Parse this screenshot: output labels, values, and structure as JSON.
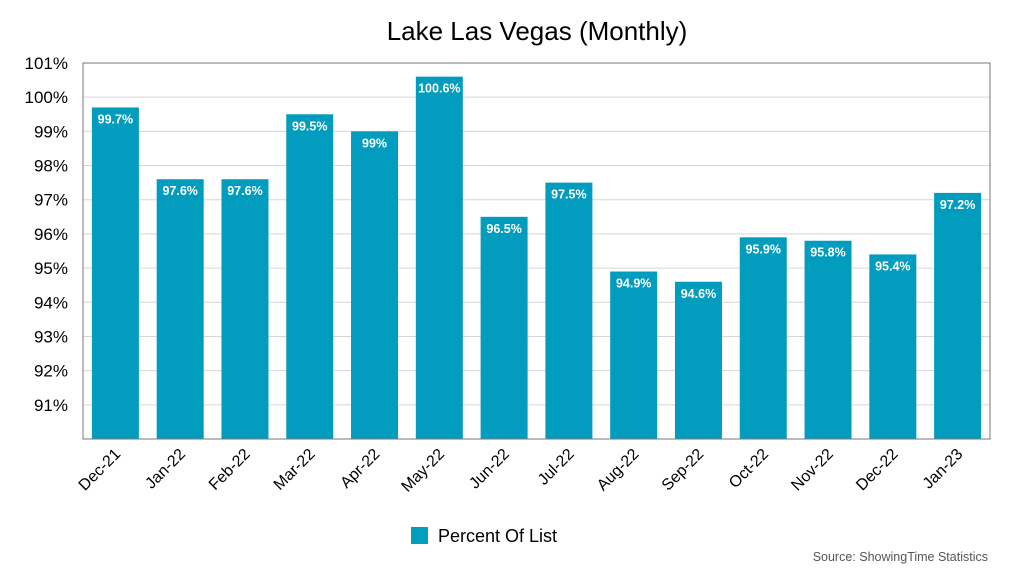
{
  "chart_data": {
    "type": "bar",
    "title": "Lake Las Vegas (Monthly)",
    "xlabel": "",
    "ylabel": "",
    "ylim": [
      90,
      101
    ],
    "yticks": [
      91,
      92,
      93,
      94,
      95,
      96,
      97,
      98,
      99,
      100,
      101
    ],
    "ytick_labels": [
      "91%",
      "92%",
      "93%",
      "94%",
      "95%",
      "96%",
      "97%",
      "98%",
      "99%",
      "100%",
      "101%"
    ],
    "grid": true,
    "categories": [
      "Dec-21",
      "Jan-22",
      "Feb-22",
      "Mar-22",
      "Apr-22",
      "May-22",
      "Jun-22",
      "Jul-22",
      "Aug-22",
      "Sep-22",
      "Oct-22",
      "Nov-22",
      "Dec-22",
      "Jan-23"
    ],
    "series": [
      {
        "name": "Percent Of List",
        "color": "#029dbe",
        "values": [
          99.7,
          97.6,
          97.6,
          99.5,
          99,
          100.6,
          96.5,
          97.5,
          94.9,
          94.6,
          95.9,
          95.8,
          95.4,
          97.2
        ],
        "labels": [
          "99.7%",
          "97.6%",
          "97.6%",
          "99.5%",
          "99%",
          "100.6%",
          "96.5%",
          "97.5%",
          "94.9%",
          "94.6%",
          "95.9%",
          "95.8%",
          "95.4%",
          "97.2%"
        ]
      }
    ],
    "legend": {
      "label": "Percent Of List",
      "placement": "bottom-center"
    },
    "source": "Source: ShowingTime Statistics"
  }
}
